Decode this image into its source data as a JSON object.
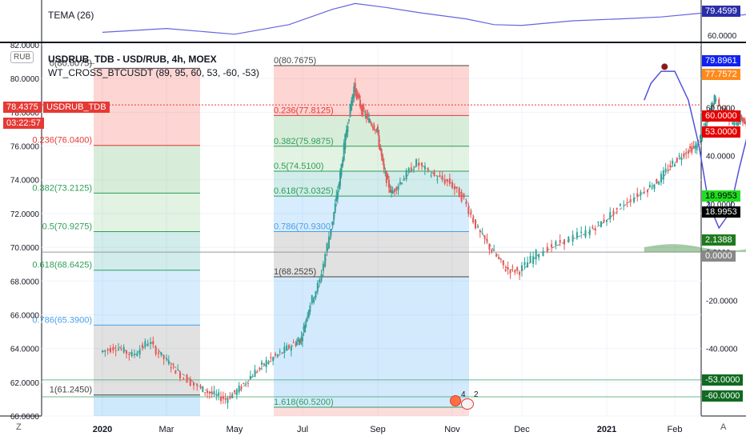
{
  "header": {
    "currency_badge": "RUB",
    "symbol_line": "USDRUB_TDB - USD/RUB, 4h, MOEX",
    "indicator_line": "WT_CROSS_BTCUSDT (89, 95, 60, 53, -60, -53)",
    "tema_label": "TEMA (26)"
  },
  "price_tags": {
    "current_price": "78.4375",
    "symbol_name": "USDRUB_TDB",
    "countdown": "03:22:57"
  },
  "right_tags": [
    {
      "text": "79.4599",
      "bg": "#2a2ea8",
      "fg": "#ffffff"
    },
    {
      "text": "79.8961",
      "bg": "#1122ee",
      "fg": "#ffffff"
    },
    {
      "text": "77.7572",
      "bg": "#ff8a1c",
      "fg": "#ffffff"
    },
    {
      "text": "60.0000",
      "bg": "#e50000",
      "fg": "#ffffff"
    },
    {
      "text": "53.0000",
      "bg": "#e50000",
      "fg": "#ffffff"
    },
    {
      "text": "18.9953",
      "bg": "#22dd22",
      "fg": "#000000"
    },
    {
      "text": "18.9953",
      "bg": "#000000",
      "fg": "#ffffff"
    },
    {
      "text": "2.1388",
      "bg": "#1f7a1f",
      "fg": "#ffffff"
    },
    {
      "text": "0.0000",
      "bg": "#888888",
      "fg": "#ffffff"
    },
    {
      "text": "-53.0000",
      "bg": "#0f6b1f",
      "fg": "#ffffff"
    },
    {
      "text": "-60.0000",
      "bg": "#0f6b1f",
      "fg": "#ffffff"
    }
  ],
  "bottom": {
    "zoom_z": "Z",
    "auto_a": "A",
    "events": [
      "4",
      "2"
    ]
  },
  "colors": {
    "candle_up": "#26a69a",
    "candle_down": "#ef5350",
    "tema_line": "#6464e0",
    "wave_line": "#5050d8",
    "forecast": "#e53935",
    "level_red": "#e53935",
    "level_green": "#2e9e58",
    "level_blue": "#4aa0e8",
    "level_grey": "#444444"
  },
  "chart_data": {
    "type": "candlestick",
    "title": "USDRUB_TDB - USD/RUB, 4h, MOEX",
    "x_ticks": [
      "2020",
      "Mar",
      "May",
      "Jul",
      "Sep",
      "Nov",
      "Dec",
      "2021",
      "Feb"
    ],
    "y_ticks_left": [
      "82.0000",
      "80.0000",
      "78.0000",
      "76.0000",
      "74.0000",
      "72.0000",
      "70.0000",
      "68.0000",
      "66.0000",
      "64.0000",
      "62.0000",
      "60.0000"
    ],
    "y_range": [
      60.0,
      82.0
    ],
    "y_ticks_right": [
      "60.0000",
      "40.0000",
      "20.0000",
      "0.0000",
      "-20.0000",
      "-40.0000"
    ],
    "y_range_right": [
      -60.0,
      80.0
    ],
    "tema_value_label": "79.4599",
    "fib_sets": [
      {
        "name": "fib-left",
        "levels": [
          {
            "label": "0(80.6075)",
            "value": 80.6075
          },
          {
            "label": "0.236(76.0400)",
            "value": 76.04
          },
          {
            "label": "0.382(73.2125)",
            "value": 73.2125
          },
          {
            "label": "0.5(70.9275)",
            "value": 70.9275
          },
          {
            "label": "0.618(68.6425)",
            "value": 68.6425
          },
          {
            "label": "0.786(65.3900)",
            "value": 65.39
          },
          {
            "label": "1(61.2450)",
            "value": 61.245
          }
        ]
      },
      {
        "name": "fib-right",
        "levels": [
          {
            "label": "0(80.7675)",
            "value": 80.7675
          },
          {
            "label": "0.236(77.8125)",
            "value": 77.8125
          },
          {
            "label": "0.382(75.9875)",
            "value": 75.9875
          },
          {
            "label": "0.5(74.5100)",
            "value": 74.51
          },
          {
            "label": "0.618(73.0325)",
            "value": 73.0325
          },
          {
            "label": "0.786(70.9300)",
            "value": 70.93
          },
          {
            "label": "1(68.2525)",
            "value": 68.2525
          },
          {
            "label": "1.618(60.5200)",
            "value": 60.52
          }
        ]
      }
    ],
    "candle_path": [
      {
        "x": 0.0,
        "y": 63.8
      },
      {
        "x": 0.25,
        "y": 64.1
      },
      {
        "x": 0.5,
        "y": 63.6
      },
      {
        "x": 0.75,
        "y": 64.4
      },
      {
        "x": 1.0,
        "y": 63.4
      },
      {
        "x": 1.2,
        "y": 62.6
      },
      {
        "x": 1.5,
        "y": 61.7
      },
      {
        "x": 1.7,
        "y": 61.3
      },
      {
        "x": 1.9,
        "y": 61.0
      },
      {
        "x": 2.1,
        "y": 61.6
      },
      {
        "x": 2.3,
        "y": 62.5
      },
      {
        "x": 2.5,
        "y": 63.2
      },
      {
        "x": 2.7,
        "y": 63.7
      },
      {
        "x": 2.9,
        "y": 64.3
      },
      {
        "x": 3.0,
        "y": 64.6
      },
      {
        "x": 3.1,
        "y": 66.4
      },
      {
        "x": 3.25,
        "y": 68.0
      },
      {
        "x": 3.4,
        "y": 71.2
      },
      {
        "x": 3.5,
        "y": 73.8
      },
      {
        "x": 3.6,
        "y": 77.0
      },
      {
        "x": 3.7,
        "y": 79.5
      },
      {
        "x": 3.8,
        "y": 78.2
      },
      {
        "x": 3.9,
        "y": 77.5
      },
      {
        "x": 4.0,
        "y": 77.0
      },
      {
        "x": 4.1,
        "y": 74.5
      },
      {
        "x": 4.2,
        "y": 73.2
      },
      {
        "x": 4.35,
        "y": 74.0
      },
      {
        "x": 4.55,
        "y": 75.0
      },
      {
        "x": 4.8,
        "y": 74.2
      },
      {
        "x": 5.0,
        "y": 73.8
      },
      {
        "x": 5.2,
        "y": 72.8
      },
      {
        "x": 5.4,
        "y": 71.0
      },
      {
        "x": 5.6,
        "y": 69.8
      },
      {
        "x": 5.8,
        "y": 68.7
      },
      {
        "x": 6.0,
        "y": 68.6
      },
      {
        "x": 6.2,
        "y": 69.6
      },
      {
        "x": 6.5,
        "y": 70.3
      },
      {
        "x": 6.8,
        "y": 70.9
      },
      {
        "x": 7.0,
        "y": 71.6
      },
      {
        "x": 7.3,
        "y": 72.6
      },
      {
        "x": 7.6,
        "y": 73.4
      },
      {
        "x": 7.8,
        "y": 74.0
      },
      {
        "x": 8.0,
        "y": 75.0
      },
      {
        "x": 8.2,
        "y": 75.7
      },
      {
        "x": 8.35,
        "y": 76.0
      },
      {
        "x": 8.5,
        "y": 77.6
      },
      {
        "x": 8.6,
        "y": 78.8
      },
      {
        "x": 8.75,
        "y": 78.0
      },
      {
        "x": 8.9,
        "y": 77.3
      },
      {
        "x": 9.0,
        "y": 77.7
      },
      {
        "x": 9.15,
        "y": 76.6
      },
      {
        "x": 9.3,
        "y": 76.2
      },
      {
        "x": 9.45,
        "y": 77.6
      },
      {
        "x": 9.55,
        "y": 79.2
      },
      {
        "x": 9.7,
        "y": 80.6
      }
    ],
    "wave_path": [
      {
        "x": 7.55,
        "y": 63
      },
      {
        "x": 7.65,
        "y": 70
      },
      {
        "x": 7.8,
        "y": 75
      },
      {
        "x": 8.0,
        "y": 75
      },
      {
        "x": 8.2,
        "y": 63
      },
      {
        "x": 8.35,
        "y": 45
      },
      {
        "x": 8.5,
        "y": 20
      },
      {
        "x": 8.65,
        "y": 10
      },
      {
        "x": 8.8,
        "y": 16
      },
      {
        "x": 8.95,
        "y": 35
      },
      {
        "x": 9.1,
        "y": 52
      },
      {
        "x": 9.25,
        "y": 63
      },
      {
        "x": 9.4,
        "y": 70
      },
      {
        "x": 9.55,
        "y": 72
      }
    ],
    "wave_peak": {
      "x": 7.85,
      "y": 80.7
    },
    "wave_trough": {
      "x": 8.7,
      "y": 72.1
    },
    "tema_path": [
      {
        "x": 0.0,
        "y": 0.8
      },
      {
        "x": 1.0,
        "y": 0.7
      },
      {
        "x": 2.0,
        "y": 0.85
      },
      {
        "x": 2.8,
        "y": 0.6
      },
      {
        "x": 3.4,
        "y": 0.2
      },
      {
        "x": 3.7,
        "y": 0.05
      },
      {
        "x": 4.1,
        "y": 0.15
      },
      {
        "x": 4.6,
        "y": 0.3
      },
      {
        "x": 5.2,
        "y": 0.45
      },
      {
        "x": 5.6,
        "y": 0.6
      },
      {
        "x": 6.0,
        "y": 0.62
      },
      {
        "x": 6.6,
        "y": 0.5
      },
      {
        "x": 7.2,
        "y": 0.45
      },
      {
        "x": 7.8,
        "y": 0.4
      },
      {
        "x": 8.4,
        "y": 0.3
      },
      {
        "x": 9.0,
        "y": 0.35
      },
      {
        "x": 9.4,
        "y": 0.2
      },
      {
        "x": 9.7,
        "y": 0.1
      }
    ],
    "forecast_path": [
      {
        "x": 9.8,
        "y": 80.5
      },
      {
        "x": 11.0,
        "y": 73.2
      },
      {
        "x": 12.45,
        "y": 81.2
      }
    ]
  }
}
